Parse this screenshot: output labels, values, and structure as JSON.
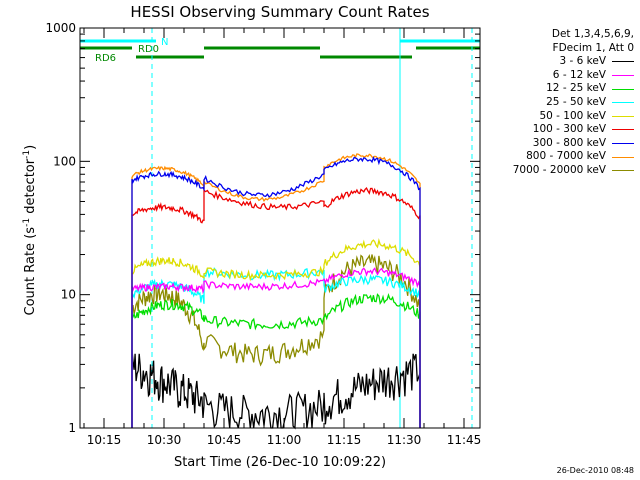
{
  "chart_data": {
    "type": "line",
    "title": "HESSI Observing Summary Count Rates",
    "xlabel": "Start Time (26-Dec-10 10:09:22)",
    "ylabel": "Count Rate",
    "ylabel_unit_base": "s",
    "ylabel_unit_exp": "-1",
    "ylabel_unit_tail": "detector",
    "y_scale": "log",
    "ylim": [
      1,
      1000
    ],
    "y_tick_labels": [
      "1",
      "10",
      "100",
      "1000"
    ],
    "xlim": [
      "10:09",
      "11:49"
    ],
    "x_tick_labels": [
      "10:15",
      "10:30",
      "10:45",
      "11:00",
      "11:15",
      "11:30",
      "11:45"
    ],
    "legend": {
      "placement": "right",
      "header1": "Det 1,3,4,5,6,9,",
      "header2": "FDecim 1, Att 0",
      "entries": [
        {
          "label": "3 - 6 keV",
          "color": "#000000"
        },
        {
          "label": "6 - 12 keV",
          "color": "#ff00ff"
        },
        {
          "label": "12 - 25 keV",
          "color": "#00dd00"
        },
        {
          "label": "25 - 50 keV",
          "color": "#00ffff"
        },
        {
          "label": "50 - 100 keV",
          "color": "#dddd00"
        },
        {
          "label": "100 - 300 keV",
          "color": "#ee0000"
        },
        {
          "label": "300 - 800 keV",
          "color": "#0000ee"
        },
        {
          "label": "800 - 7000 keV",
          "color": "#ff8c00"
        },
        {
          "label": "7000 - 20000 keV",
          "color": "#8b8b00"
        }
      ]
    },
    "orbit_flags": [
      {
        "label": "N",
        "color": "#00ffff",
        "segments": [
          [
            "10:09",
            "10:28"
          ],
          [
            "11:29",
            "11:49"
          ]
        ]
      },
      {
        "label": "RD0",
        "color": "#008800",
        "segments": [
          [
            "10:09",
            "10:22"
          ],
          [
            "10:40",
            "11:09"
          ],
          [
            "11:33",
            "11:49"
          ]
        ]
      },
      {
        "label": "RD6",
        "color": "#008800",
        "segments": [
          [
            "10:23",
            "10:40"
          ],
          [
            "11:09",
            "11:32"
          ]
        ]
      }
    ],
    "vertical_markers": [
      {
        "time": "10:09",
        "color": "#00ffff",
        "style": "solid"
      },
      {
        "time": "10:27",
        "color": "#00ffff",
        "style": "dashed"
      },
      {
        "time": "11:29",
        "color": "#00ffff",
        "style": "solid"
      },
      {
        "time": "11:47",
        "color": "#00ffff",
        "style": "dashed"
      }
    ],
    "data_span": [
      "10:22",
      "11:34"
    ],
    "segment_breaks": [
      "10:40",
      "11:10"
    ],
    "series": [
      {
        "name": "3 - 6 keV",
        "color": "#000000",
        "segments": [
          [
            3,
            2.2,
            1.6
          ],
          [
            1.5,
            1.3,
            1.5
          ],
          [
            1.6,
            2.2,
            2.8
          ]
        ]
      },
      {
        "name": "6 - 12 keV",
        "color": "#ff00ff",
        "segments": [
          [
            11,
            11.5,
            11
          ],
          [
            12,
            11.5,
            12.5
          ],
          [
            12.5,
            15,
            12
          ]
        ]
      },
      {
        "name": "12 - 25 keV",
        "color": "#00dd00",
        "segments": [
          [
            6.5,
            8.5,
            6.8
          ],
          [
            6.5,
            6.0,
            6.5
          ],
          [
            6.5,
            9.5,
            7
          ]
        ]
      },
      {
        "name": "25 - 50 keV",
        "color": "#00ffff",
        "segments": [
          [
            10,
            12,
            9
          ],
          [
            15,
            14,
            15
          ],
          [
            11,
            13,
            10
          ]
        ]
      },
      {
        "name": "50 - 100 keV",
        "color": "#dddd00",
        "segments": [
          [
            15,
            18,
            14
          ],
          [
            15,
            14,
            15
          ],
          [
            17,
            24,
            17
          ]
        ]
      },
      {
        "name": "100 - 300 keV",
        "color": "#ee0000",
        "segments": [
          [
            40,
            45,
            35
          ],
          [
            60,
            46,
            50
          ],
          [
            45,
            60,
            38
          ]
        ]
      },
      {
        "name": "300 - 800 keV",
        "color": "#0000ee",
        "segments": [
          [
            72,
            80,
            62
          ],
          [
            75,
            56,
            80
          ],
          [
            85,
            103,
            62
          ]
        ]
      },
      {
        "name": "800 - 7000 keV",
        "color": "#ff8c00",
        "segments": [
          [
            78,
            88,
            66
          ],
          [
            70,
            52,
            72
          ],
          [
            90,
            110,
            67
          ]
        ]
      },
      {
        "name": "7000 - 20000 keV",
        "color": "#8b8b00",
        "segments": [
          [
            8,
            10,
            4
          ],
          [
            4.5,
            3.6,
            5
          ],
          [
            10,
            17,
            8
          ]
        ]
      }
    ],
    "grid": false,
    "timestamp": "26-Dec-2010 08:48"
  }
}
